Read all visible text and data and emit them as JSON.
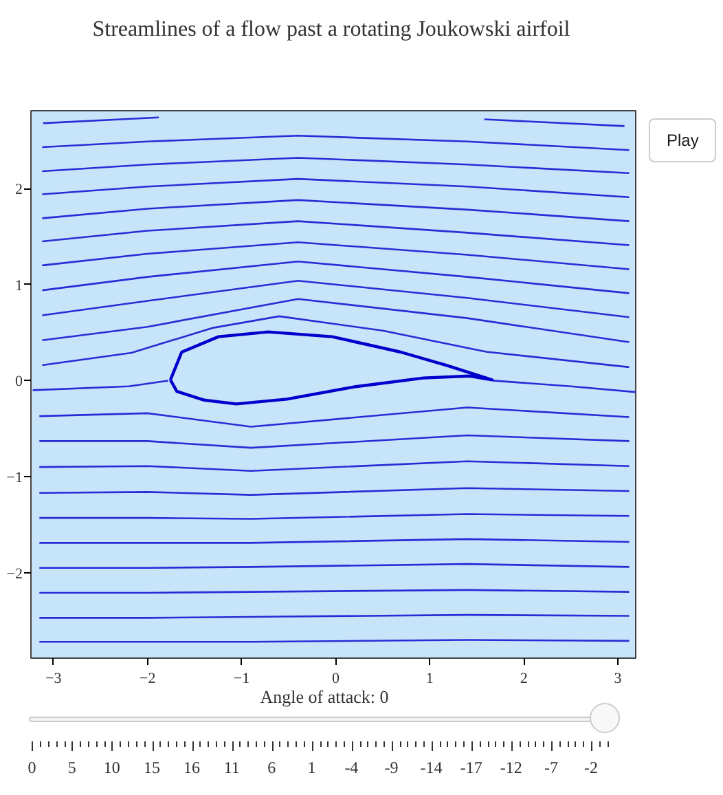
{
  "chart_data": {
    "type": "line",
    "title": "Streamlines of a flow past a rotating Joukowski airfoil",
    "xlim": [
      -3.24,
      3.19
    ],
    "ylim": [
      -2.89,
      2.81
    ],
    "xticks": [
      {
        "value": -3,
        "label": "−3"
      },
      {
        "value": -2,
        "label": "−2"
      },
      {
        "value": -1,
        "label": "−1"
      },
      0,
      1,
      2,
      3
    ],
    "yticks": [
      {
        "value": -2,
        "label": "−2"
      },
      {
        "value": -1,
        "label": "−1"
      },
      0,
      1,
      2
    ],
    "grid": false,
    "line_style": "solid",
    "marker": "none",
    "annotations": [
      "Play",
      "Angle of attack: 0",
      "0",
      "5",
      "10",
      "15",
      "16",
      "11",
      "6",
      "1",
      "-4",
      "-9",
      "-14",
      "-17",
      "-12",
      "-7",
      "-2"
    ],
    "series": [
      {
        "color": "#2b2bd6",
        "x": [
          -3.11,
          -1.88,
          null,
          1.58,
          3.07
        ],
        "values": [
          2.68,
          2.74,
          null,
          2.72,
          2.65
        ]
      },
      {
        "color": "#2b2bd6",
        "x": [
          -3.12,
          -2,
          -0.4,
          1.4,
          3.12
        ],
        "values": [
          2.43,
          2.49,
          2.55,
          2.49,
          2.4
        ]
      },
      {
        "color": "#2b2bd6",
        "x": [
          -3.12,
          -2,
          -0.4,
          1.4,
          3.12
        ],
        "values": [
          2.18,
          2.25,
          2.32,
          2.25,
          2.16
        ]
      },
      {
        "color": "#2b2bd6",
        "x": [
          -3.12,
          -2,
          -0.4,
          1.4,
          3.12
        ],
        "values": [
          1.94,
          2.02,
          2.1,
          2.02,
          1.91
        ]
      },
      {
        "color": "#2b2bd6",
        "x": [
          -3.12,
          -2,
          -0.4,
          1.4,
          3.12
        ],
        "values": [
          1.69,
          1.79,
          1.88,
          1.78,
          1.66
        ]
      },
      {
        "color": "#2b2bd6",
        "x": [
          -3.12,
          -2,
          -0.4,
          1.4,
          3.12
        ],
        "values": [
          1.45,
          1.56,
          1.66,
          1.54,
          1.41
        ]
      },
      {
        "color": "#2b2bd6",
        "x": [
          -3.12,
          -2,
          -0.4,
          1.4,
          3.12
        ],
        "values": [
          1.2,
          1.32,
          1.44,
          1.31,
          1.16
        ]
      },
      {
        "color": "#2b2bd6",
        "x": [
          -3.12,
          -2,
          -0.4,
          1.4,
          3.12
        ],
        "values": [
          0.94,
          1.08,
          1.24,
          1.08,
          0.91
        ]
      },
      {
        "color": "#2b2bd6",
        "x": [
          -3.12,
          -2,
          -0.4,
          1.4,
          3.12
        ],
        "values": [
          0.68,
          0.83,
          1.04,
          0.86,
          0.66
        ]
      },
      {
        "color": "#2b2bd6",
        "x": [
          -3.12,
          -2,
          -0.4,
          1.4,
          3.12
        ],
        "values": [
          0.42,
          0.56,
          0.85,
          0.65,
          0.4
        ]
      },
      {
        "color": "#2b2bd6",
        "x": [
          -3.12,
          -2.17,
          -1.3,
          -0.6,
          0.5,
          1.6,
          3.12
        ],
        "values": [
          0.16,
          0.29,
          0.55,
          0.67,
          0.52,
          0.3,
          0.14
        ]
      },
      {
        "color": "#2b2bd6",
        "x": [
          -3.22,
          -2.2,
          -1.78,
          null,
          1.67,
          2.5,
          3.19
        ],
        "values": [
          -0.1,
          -0.06,
          0,
          null,
          0,
          -0.06,
          -0.12
        ]
      },
      {
        "color": "#2b2bd6",
        "x": [
          -3.15,
          -2,
          -0.9,
          1.4,
          3.12
        ],
        "values": [
          -0.37,
          -0.34,
          -0.48,
          -0.28,
          -0.38
        ]
      },
      {
        "color": "#2b2bd6",
        "x": [
          -3.15,
          -2,
          -0.9,
          1.4,
          3.12
        ],
        "values": [
          -0.63,
          -0.63,
          -0.7,
          -0.57,
          -0.63
        ]
      },
      {
        "color": "#2b2bd6",
        "x": [
          -3.15,
          -2,
          -0.9,
          1.4,
          3.12
        ],
        "values": [
          -0.9,
          -0.89,
          -0.94,
          -0.84,
          -0.89
        ]
      },
      {
        "color": "#2b2bd6",
        "x": [
          -3.15,
          -2,
          -0.9,
          1.4,
          3.12
        ],
        "values": [
          -1.17,
          -1.16,
          -1.19,
          -1.12,
          -1.15
        ]
      },
      {
        "color": "#2b2bd6",
        "x": [
          -3.15,
          -2,
          -0.9,
          1.4,
          3.12
        ],
        "values": [
          -1.43,
          -1.43,
          -1.44,
          -1.39,
          -1.41
        ]
      },
      {
        "color": "#2b2bd6",
        "x": [
          -3.15,
          -2,
          -0.9,
          1.4,
          3.12
        ],
        "values": [
          -1.69,
          -1.69,
          -1.69,
          -1.65,
          -1.68
        ]
      },
      {
        "color": "#2b2bd6",
        "x": [
          -3.15,
          -2,
          -0.9,
          1.4,
          3.12
        ],
        "values": [
          -1.95,
          -1.95,
          -1.94,
          -1.91,
          -1.94
        ]
      },
      {
        "color": "#2b2bd6",
        "x": [
          -3.15,
          -2,
          -0.9,
          1.4,
          3.12
        ],
        "values": [
          -2.21,
          -2.21,
          -2.2,
          -2.18,
          -2.2
        ]
      },
      {
        "color": "#2b2bd6",
        "x": [
          -3.15,
          -2,
          -0.9,
          1.4,
          3.12
        ],
        "values": [
          -2.47,
          -2.47,
          -2.46,
          -2.44,
          -2.45
        ]
      },
      {
        "color": "#2b2bd6",
        "x": [
          -3.15,
          -2,
          -0.9,
          1.4,
          3.12
        ],
        "values": [
          -2.72,
          -2.72,
          -2.72,
          -2.7,
          -2.71
        ]
      }
    ]
  }
}
